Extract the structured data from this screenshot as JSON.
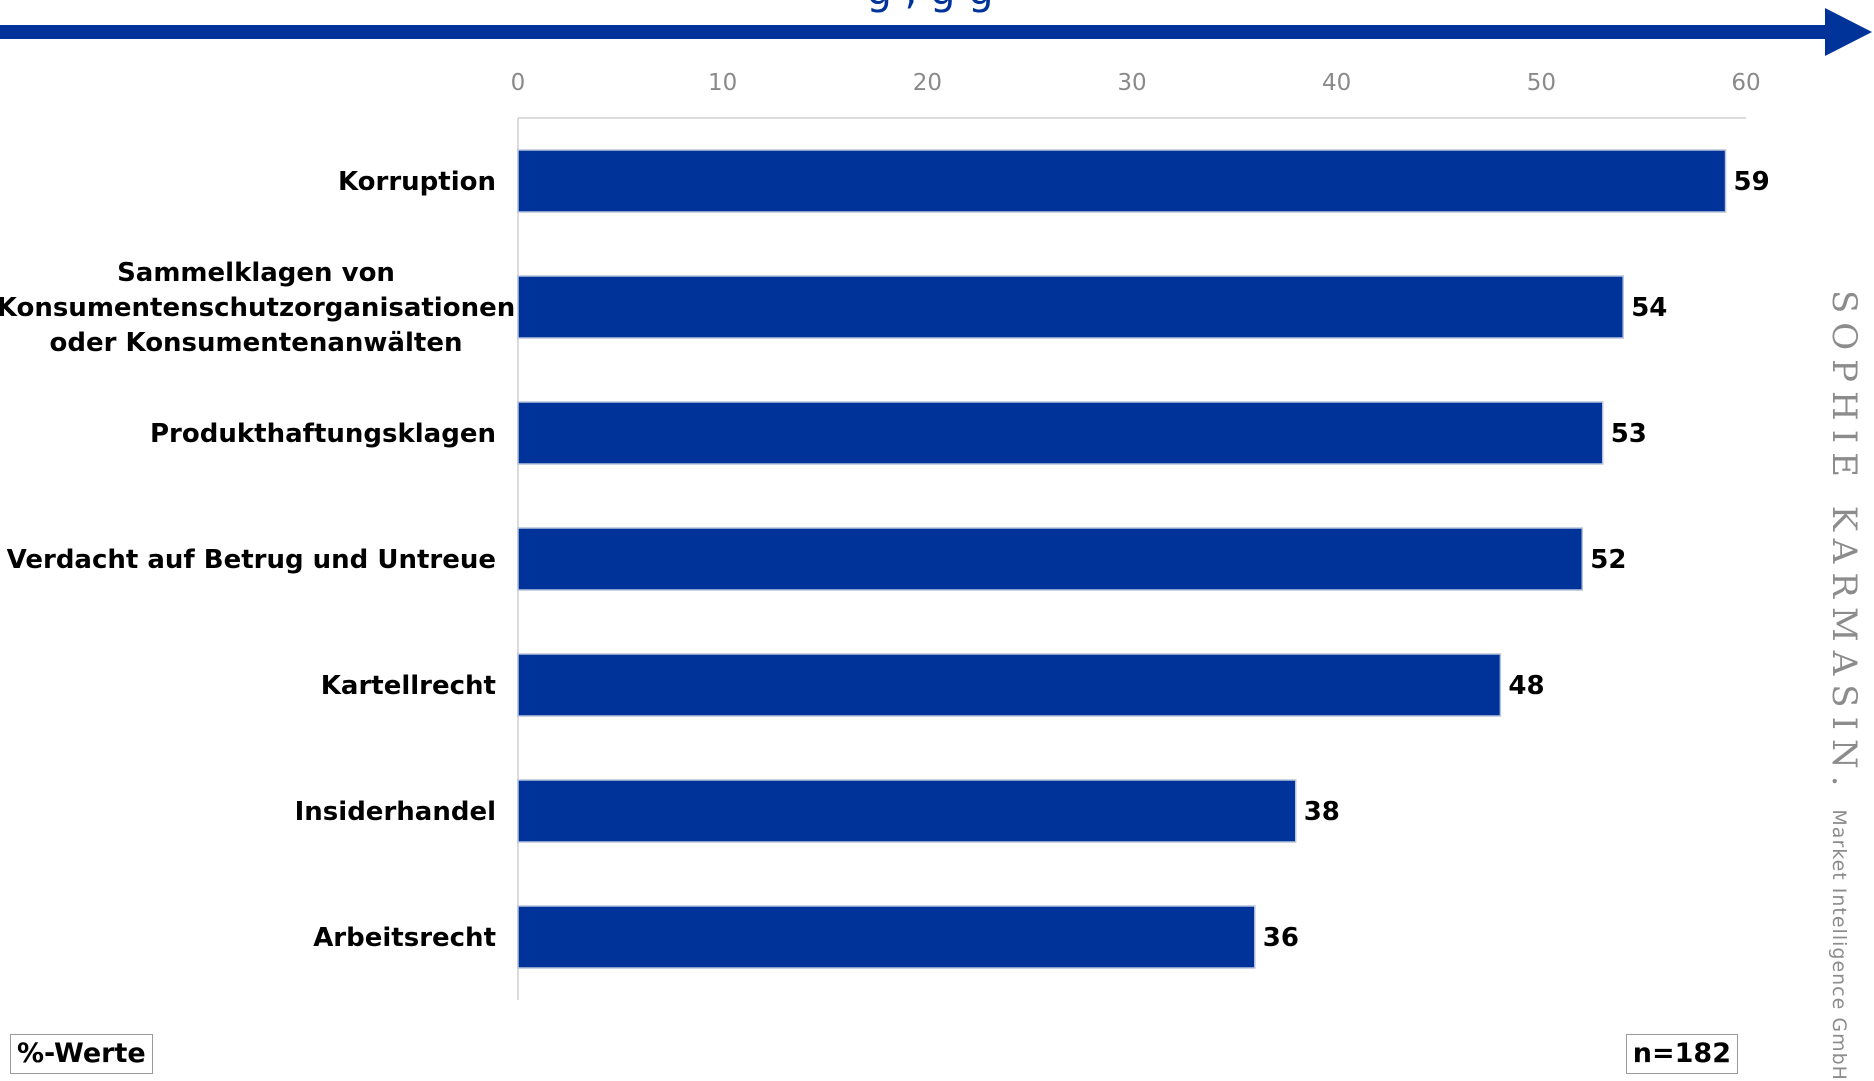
{
  "header": {
    "title_fragment": "g          ,             g  g"
  },
  "chart_data": {
    "type": "bar",
    "orientation": "horizontal",
    "categories": [
      "Korruption",
      "Sammelklagen von Konsumentenschutzorganisationen oder Konsumentenanwälten",
      "Produkthaftungsklagen",
      "Verdacht auf Betrug und Untreue",
      "Kartellrecht",
      "Insiderhandel",
      "Arbeitsrecht"
    ],
    "category_lines": [
      [
        "Korruption"
      ],
      [
        "Sammelklagen von",
        "Konsumentenschutzorganisationen",
        "oder Konsumentenanwälten"
      ],
      [
        "Produkthaftungsklagen"
      ],
      [
        "Verdacht auf Betrug und Untreue"
      ],
      [
        "Kartellrecht"
      ],
      [
        "Insiderhandel"
      ],
      [
        "Arbeitsrecht"
      ]
    ],
    "values": [
      59,
      54,
      53,
      52,
      48,
      38,
      36
    ],
    "xlim": [
      0,
      60
    ],
    "xticks": [
      0,
      10,
      20,
      30,
      40,
      50,
      60
    ],
    "axis_position": "top",
    "grid": false,
    "legend": "none",
    "bar_color": "#003399",
    "arrow_color": "#003399"
  },
  "footer": {
    "unit_label": "%-Werte",
    "sample_label": "n=182"
  },
  "brand": {
    "name": "SOPHIE KARMASIN.",
    "sub": "Market Intelligence GmbH"
  }
}
